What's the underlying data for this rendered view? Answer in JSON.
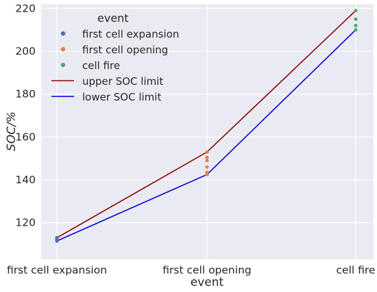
{
  "chart_data": {
    "type": "scatter",
    "xlabel": "event",
    "ylabel": "SOC/%",
    "categories": [
      "first cell expansion",
      "first cell opening",
      "cell fire"
    ],
    "ylim": [
      103,
      222
    ],
    "yticks": [
      120,
      140,
      160,
      180,
      200,
      220
    ],
    "grid": true,
    "background": "#eaeaf2",
    "legend": {
      "title": "event",
      "position": "top-left",
      "entries": [
        {
          "label": "first cell expansion",
          "kind": "marker",
          "color": "#4c72b0"
        },
        {
          "label": "first cell opening",
          "kind": "marker",
          "color": "#dd8452"
        },
        {
          "label": "cell fire",
          "kind": "marker",
          "color": "#55a868"
        },
        {
          "label": "upper SOC limit",
          "kind": "line",
          "color": "#8b0000"
        },
        {
          "label": "lower SOC limit",
          "kind": "line",
          "color": "#0000dd"
        }
      ]
    },
    "scatter_series": [
      {
        "category": "first cell expansion",
        "color": "#4c72b0",
        "values": [
          111.5,
          112,
          112.5,
          113
        ]
      },
      {
        "category": "first cell opening",
        "color": "#dd8452",
        "values": [
          142.5,
          143.5,
          146,
          149,
          150.5,
          153
        ]
      },
      {
        "category": "cell fire",
        "color": "#55a868",
        "values": [
          210,
          212,
          215,
          219
        ]
      }
    ],
    "line_series": [
      {
        "label": "upper SOC limit",
        "color": "#8b0000",
        "values": [
          113,
          153,
          219
        ]
      },
      {
        "label": "lower SOC limit",
        "color": "#0000dd",
        "values": [
          111.5,
          142.5,
          210
        ]
      }
    ]
  }
}
